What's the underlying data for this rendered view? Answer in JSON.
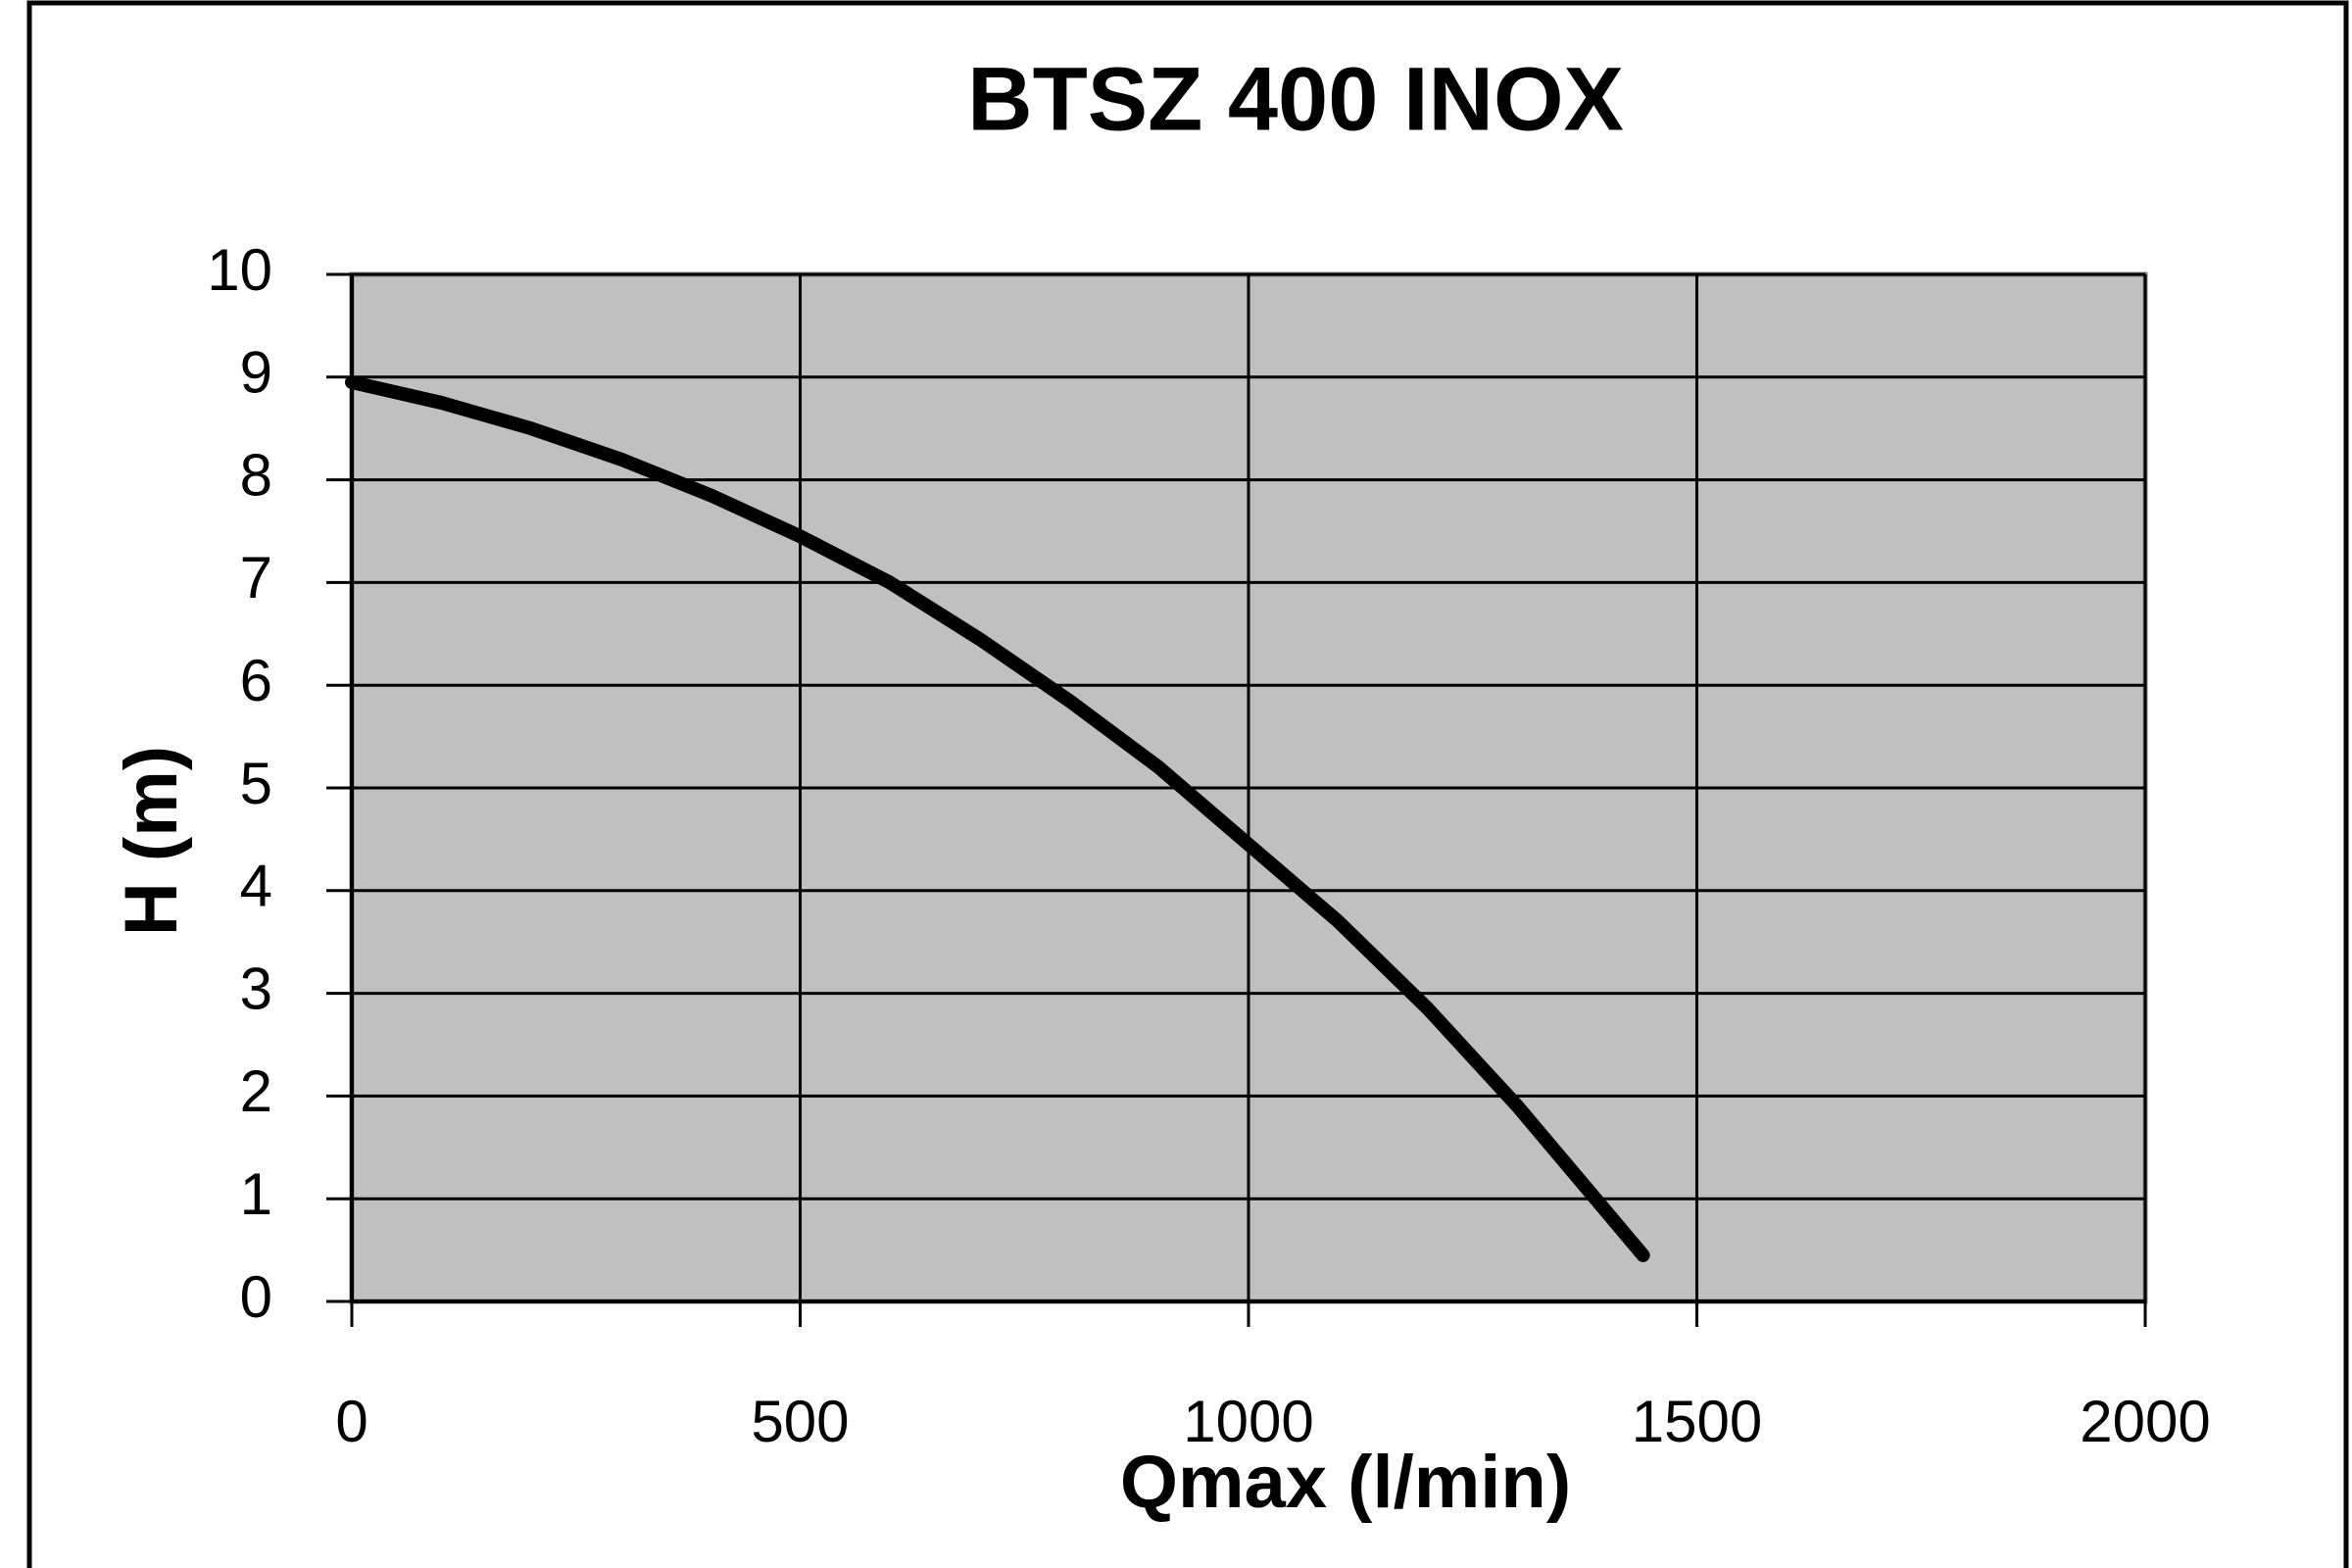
{
  "chart_data": {
    "type": "line",
    "title": "BTSZ 400 INOX",
    "x_label": "Qmax (l/min)",
    "y_label": "H (m)",
    "x": [
      0,
      100,
      200,
      300,
      400,
      500,
      600,
      700,
      800,
      900,
      1000,
      1100,
      1200,
      1300,
      1440
    ],
    "values": [
      8.95,
      8.75,
      8.5,
      8.2,
      7.85,
      7.45,
      7.0,
      6.45,
      5.85,
      5.2,
      4.45,
      3.7,
      2.85,
      1.9,
      0.45
    ],
    "color": "#000000",
    "xlim": [
      0,
      2000
    ],
    "xticks": [
      0,
      500,
      1000,
      1500,
      2000
    ],
    "ylim": [
      0,
      10
    ],
    "yticks": [
      0,
      1,
      2,
      3,
      4,
      5,
      6,
      7,
      8,
      9,
      10
    ],
    "grid": true
  }
}
